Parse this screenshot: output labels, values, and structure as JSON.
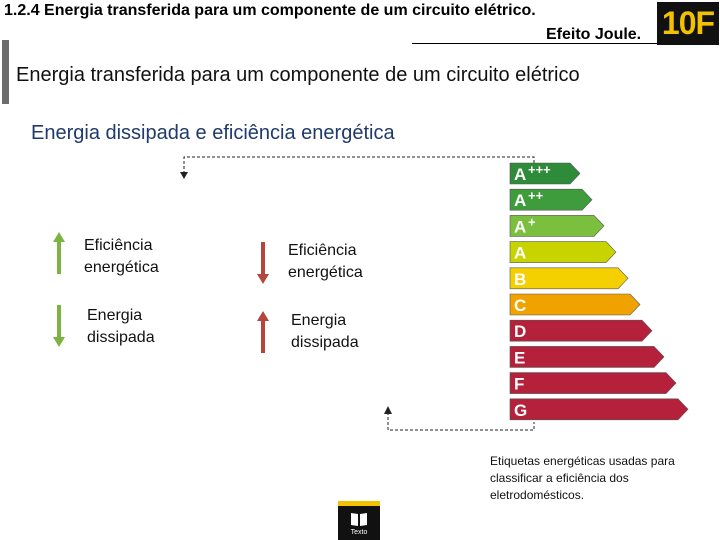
{
  "header": {
    "title": "1.2.4 Energia transferida para um componente de um circuito   elétrico.",
    "subtitle": "Efeito Joule.",
    "badge": "10F"
  },
  "slide": {
    "title": "Energia transferida para um componente de um circuito elétrico",
    "subtitle": "Energia dissipada e eficiência energética"
  },
  "left_group": {
    "efficiency_label": "Eficiência energética",
    "dissipated_label": "Energia dissipada",
    "efficiency_arrow": "up",
    "dissipated_arrow": "down",
    "arrow_color": "#7cb342"
  },
  "right_group": {
    "efficiency_label": "Eficiência energética",
    "dissipated_label": "Energia dissipada",
    "efficiency_arrow": "down",
    "dissipated_arrow": "up",
    "arrow_color": "#b5463d"
  },
  "energy_label": {
    "classes": [
      {
        "label": "A",
        "sup": "+++",
        "color": "#2e8b3a"
      },
      {
        "label": "A",
        "sup": "++",
        "color": "#3f9c3c"
      },
      {
        "label": "A",
        "sup": "+",
        "color": "#7bbf3e"
      },
      {
        "label": "A",
        "sup": "",
        "color": "#c8d400"
      },
      {
        "label": "B",
        "sup": "",
        "color": "#f5d000"
      },
      {
        "label": "C",
        "sup": "",
        "color": "#f0a200"
      },
      {
        "label": "D",
        "sup": "",
        "color": "#b5213b"
      },
      {
        "label": "E",
        "sup": "",
        "color": "#b5213b"
      },
      {
        "label": "F",
        "sup": "",
        "color": "#b5213b"
      },
      {
        "label": "G",
        "sup": "",
        "color": "#b5213b"
      }
    ]
  },
  "caption": "Etiquetas energéticas usadas para classificar a eficiência dos eletrodomésticos.",
  "logo": {
    "text": "Texto"
  }
}
